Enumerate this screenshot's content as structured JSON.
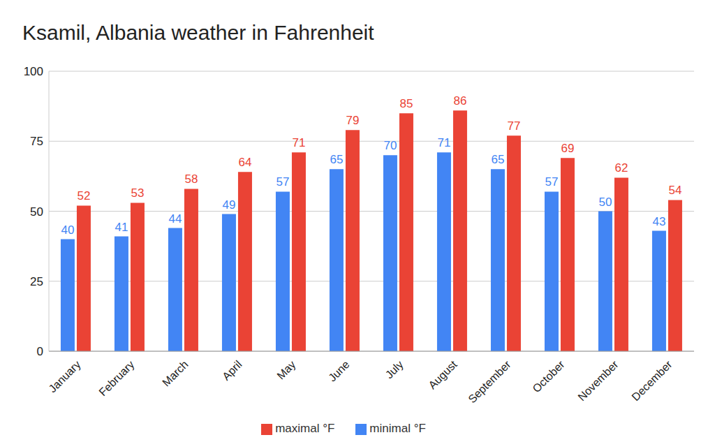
{
  "chart_data": {
    "type": "bar",
    "title": "Ksamil, Albania weather in Fahrenheit",
    "categories": [
      "January",
      "February",
      "March",
      "April",
      "May",
      "June",
      "July",
      "August",
      "September",
      "October",
      "November",
      "December"
    ],
    "series": [
      {
        "name": "minimal °F",
        "color": "#4285f4",
        "values": [
          40,
          41,
          44,
          49,
          57,
          65,
          70,
          71,
          65,
          57,
          50,
          43
        ]
      },
      {
        "name": "maximal °F",
        "color": "#ea4335",
        "values": [
          52,
          53,
          58,
          64,
          71,
          79,
          85,
          86,
          77,
          69,
          62,
          54
        ]
      }
    ],
    "ylim": [
      0,
      100
    ],
    "yticks": [
      0,
      25,
      50,
      75,
      100
    ],
    "grid": true,
    "legend": "bottom",
    "data_labels": true
  }
}
